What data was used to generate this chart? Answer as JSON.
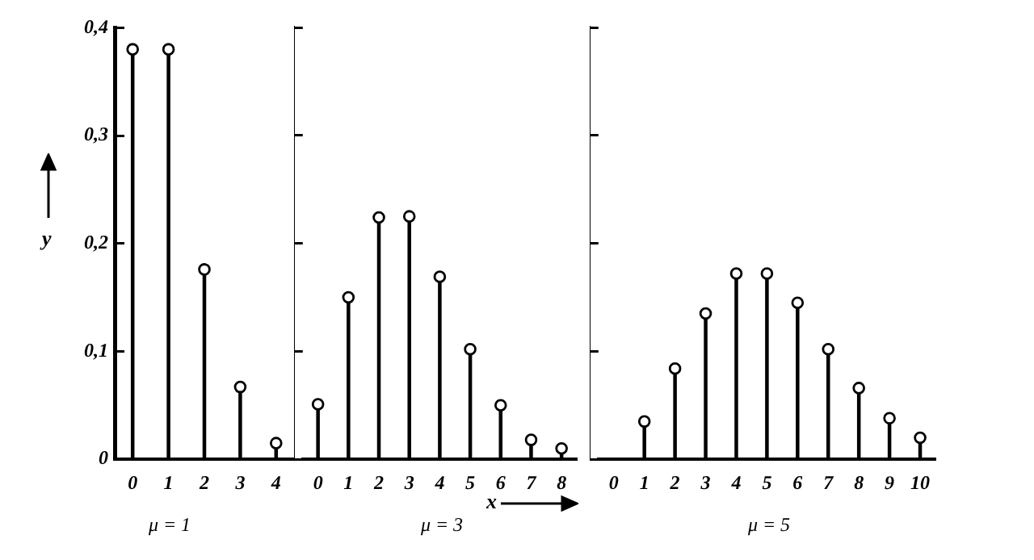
{
  "chart_data": [
    {
      "type": "lollipop",
      "categories": [
        "0",
        "1",
        "2",
        "3",
        "4"
      ],
      "series": [
        {
          "color": "#000000",
          "values": [
            0.38,
            0.38,
            0.176,
            0.067,
            0.015
          ]
        }
      ],
      "ylim": [
        0,
        0.4
      ],
      "yticks": [
        0,
        {
          "value": 0.1,
          "label": "0,1"
        },
        {
          "value": 0.2,
          "label": "0,2"
        },
        {
          "value": 0.3,
          "label": "0,3"
        },
        {
          "value": 0.4,
          "label": "0,4"
        }
      ],
      "ylabel": "y",
      "marker": "circle",
      "grid": false,
      "legend": false,
      "annotations": [
        "μ = 1"
      ]
    },
    {
      "type": "lollipop",
      "categories": [
        "0",
        "1",
        "2",
        "3",
        "4",
        "5",
        "6",
        "7",
        "8"
      ],
      "series": [
        {
          "color": "#000000",
          "values": [
            0.051,
            0.15,
            0.224,
            0.225,
            0.169,
            0.102,
            0.05,
            0.018,
            0.01
          ]
        }
      ],
      "ylim": [
        0,
        0.4
      ],
      "yticks": [
        {
          "value": 0,
          "label": null
        },
        {
          "value": 0.1,
          "label": null
        },
        {
          "value": 0.2,
          "label": null
        },
        {
          "value": 0.3,
          "label": null
        },
        {
          "value": 0.4,
          "label": null
        }
      ],
      "xlabel": "x",
      "marker": "circle",
      "grid": false,
      "legend": false,
      "tick_labels": "x",
      "annotations": [
        "μ = 3"
      ]
    },
    {
      "type": "lollipop",
      "categories": [
        "0",
        "1",
        "2",
        "3",
        "4",
        "5",
        "6",
        "7",
        "8",
        "9",
        "10"
      ],
      "series": [
        {
          "color": "#000000",
          "values": [
            null,
            0.035,
            0.084,
            0.135,
            0.172,
            0.172,
            0.145,
            0.102,
            0.066,
            0.038,
            0.02
          ]
        }
      ],
      "ylim": [
        0,
        0.4
      ],
      "yticks": [
        {
          "value": 0,
          "label": null
        },
        {
          "value": 0.1,
          "label": null
        },
        {
          "value": 0.2,
          "label": null
        },
        {
          "value": 0.3,
          "label": null
        },
        {
          "value": 0.4,
          "label": null
        }
      ],
      "marker": "circle",
      "grid": false,
      "legend": false,
      "tick_labels": "x",
      "annotations": [
        "μ = 5"
      ]
    }
  ]
}
